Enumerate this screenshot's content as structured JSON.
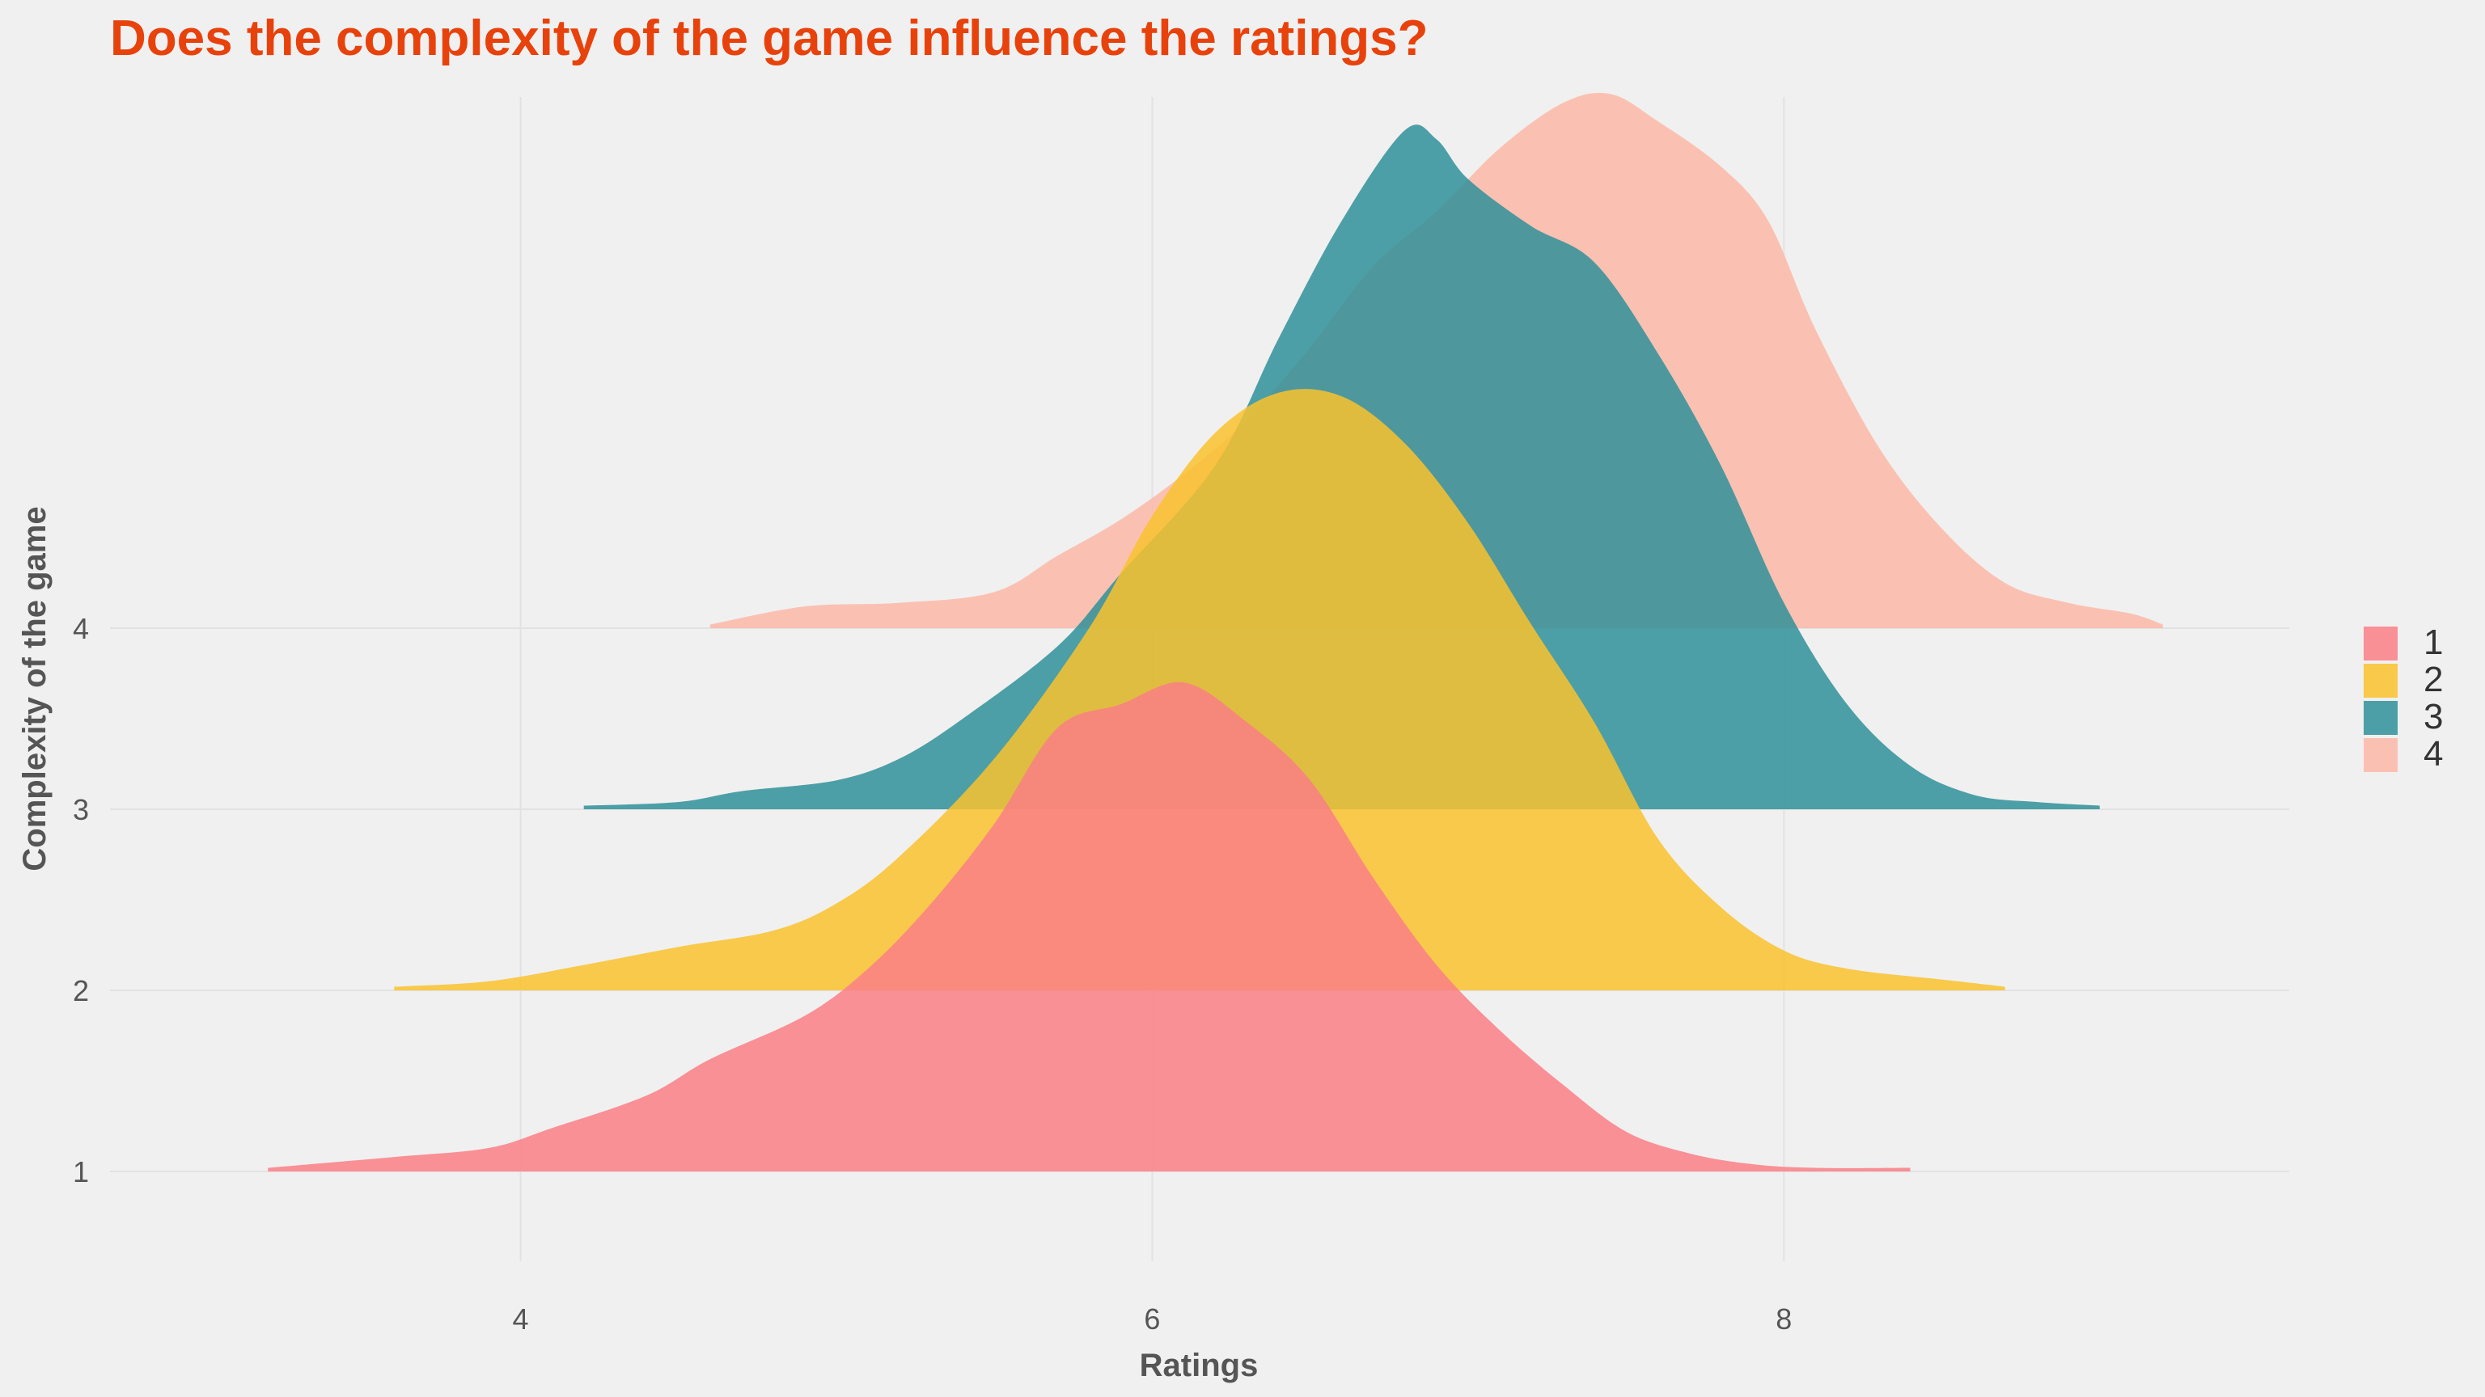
{
  "chart_data": {
    "type": "area",
    "subtype": "ridgeline",
    "title": "Does the complexity of the game influence the ratings?",
    "xlabel": "Ratings",
    "ylabel": "Complexity of the game",
    "xlim": [
      2.7,
      9.6
    ],
    "x_ticks": [
      4,
      6,
      8
    ],
    "y_ticks": [
      "1",
      "2",
      "3",
      "4"
    ],
    "grid": true,
    "legend_position": "right",
    "colors": {
      "title": "#e8420c",
      "text": "#555555",
      "grid": "#e2e2e2",
      "background": "#f0f0f0"
    },
    "series": [
      {
        "name": "1",
        "color": "#fa7f86",
        "opacity": 0.85,
        "points": [
          [
            3.2,
            0.02
          ],
          [
            3.6,
            0.08
          ],
          [
            3.9,
            0.13
          ],
          [
            4.1,
            0.24
          ],
          [
            4.4,
            0.42
          ],
          [
            4.6,
            0.62
          ],
          [
            4.9,
            0.86
          ],
          [
            5.1,
            1.12
          ],
          [
            5.3,
            1.48
          ],
          [
            5.5,
            1.92
          ],
          [
            5.7,
            2.45
          ],
          [
            5.9,
            2.58
          ],
          [
            6.1,
            2.7
          ],
          [
            6.3,
            2.48
          ],
          [
            6.5,
            2.16
          ],
          [
            6.7,
            1.62
          ],
          [
            6.9,
            1.14
          ],
          [
            7.1,
            0.78
          ],
          [
            7.3,
            0.48
          ],
          [
            7.5,
            0.22
          ],
          [
            7.7,
            0.1
          ],
          [
            7.9,
            0.04
          ],
          [
            8.1,
            0.02
          ],
          [
            8.4,
            0.02
          ]
        ]
      },
      {
        "name": "2",
        "color": "#f9c22e",
        "opacity": 0.85,
        "points": [
          [
            3.6,
            0.02
          ],
          [
            3.9,
            0.05
          ],
          [
            4.2,
            0.14
          ],
          [
            4.5,
            0.24
          ],
          [
            4.8,
            0.33
          ],
          [
            5.0,
            0.48
          ],
          [
            5.2,
            0.74
          ],
          [
            5.5,
            1.28
          ],
          [
            5.8,
            2.0
          ],
          [
            6.0,
            2.62
          ],
          [
            6.2,
            3.08
          ],
          [
            6.4,
            3.3
          ],
          [
            6.6,
            3.28
          ],
          [
            6.8,
            3.02
          ],
          [
            7.0,
            2.58
          ],
          [
            7.2,
            2.02
          ],
          [
            7.4,
            1.48
          ],
          [
            7.6,
            0.84
          ],
          [
            7.8,
            0.46
          ],
          [
            8.0,
            0.22
          ],
          [
            8.2,
            0.12
          ],
          [
            8.5,
            0.06
          ],
          [
            8.7,
            0.02
          ]
        ]
      },
      {
        "name": "3",
        "color": "#2f9199",
        "opacity": 0.85,
        "points": [
          [
            4.2,
            0.02
          ],
          [
            4.5,
            0.04
          ],
          [
            4.7,
            0.1
          ],
          [
            5.0,
            0.16
          ],
          [
            5.2,
            0.28
          ],
          [
            5.4,
            0.5
          ],
          [
            5.7,
            0.9
          ],
          [
            5.9,
            1.3
          ],
          [
            6.2,
            1.9
          ],
          [
            6.4,
            2.6
          ],
          [
            6.6,
            3.25
          ],
          [
            6.8,
            3.75
          ],
          [
            6.9,
            3.7
          ],
          [
            7.0,
            3.48
          ],
          [
            7.2,
            3.22
          ],
          [
            7.4,
            3.02
          ],
          [
            7.6,
            2.52
          ],
          [
            7.8,
            1.9
          ],
          [
            8.0,
            1.14
          ],
          [
            8.2,
            0.58
          ],
          [
            8.4,
            0.24
          ],
          [
            8.6,
            0.08
          ],
          [
            8.8,
            0.04
          ],
          [
            9.0,
            0.02
          ]
        ]
      },
      {
        "name": "4",
        "color": "#fcb8a7",
        "opacity": 0.85,
        "points": [
          [
            4.6,
            0.02
          ],
          [
            4.9,
            0.12
          ],
          [
            5.2,
            0.14
          ],
          [
            5.5,
            0.2
          ],
          [
            5.7,
            0.4
          ],
          [
            5.9,
            0.6
          ],
          [
            6.1,
            0.85
          ],
          [
            6.3,
            1.15
          ],
          [
            6.5,
            1.55
          ],
          [
            6.7,
            2.0
          ],
          [
            6.9,
            2.3
          ],
          [
            7.1,
            2.65
          ],
          [
            7.3,
            2.9
          ],
          [
            7.45,
            2.95
          ],
          [
            7.6,
            2.8
          ],
          [
            7.8,
            2.55
          ],
          [
            7.95,
            2.25
          ],
          [
            8.1,
            1.65
          ],
          [
            8.3,
            1.0
          ],
          [
            8.5,
            0.55
          ],
          [
            8.7,
            0.25
          ],
          [
            8.9,
            0.14
          ],
          [
            9.1,
            0.08
          ],
          [
            9.2,
            0.02
          ]
        ]
      }
    ]
  }
}
